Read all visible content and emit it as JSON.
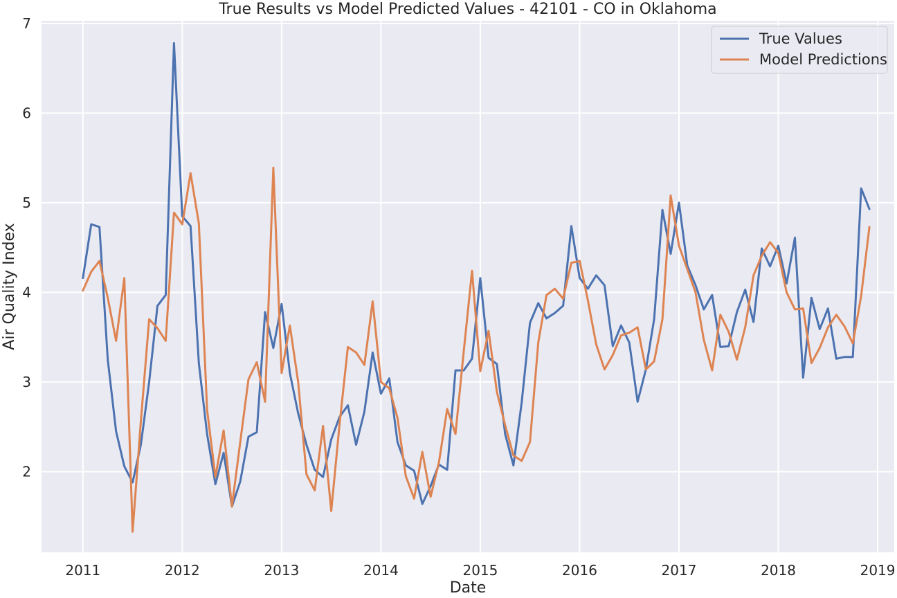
{
  "chart_data": {
    "type": "line",
    "title": "True Results vs Model Predicted Values - 42101 - CO in Oklahoma",
    "xlabel": "Date",
    "ylabel": "Air Quality Index",
    "x_start": "2011-01",
    "x_frequency": "monthly",
    "x_ticks": [
      "2011",
      "2012",
      "2013",
      "2014",
      "2015",
      "2016",
      "2017",
      "2018",
      "2019"
    ],
    "y_ticks": [
      2,
      3,
      4,
      5,
      6,
      7
    ],
    "xlim": [
      "2010-08",
      "2019-03"
    ],
    "ylim": [
      1.1,
      7.03
    ],
    "grid": true,
    "legend_position": "top-right",
    "series": [
      {
        "name": "True Values",
        "color": "#4c72b0",
        "values": [
          4.16,
          4.76,
          4.73,
          3.25,
          2.45,
          2.06,
          1.88,
          2.3,
          3.0,
          3.85,
          3.97,
          6.78,
          4.85,
          4.74,
          3.21,
          2.42,
          1.86,
          2.21,
          1.61,
          1.89,
          2.39,
          2.44,
          3.78,
          3.38,
          3.87,
          3.1,
          2.65,
          2.3,
          2.02,
          1.94,
          2.36,
          2.61,
          2.74,
          2.3,
          2.67,
          3.33,
          2.87,
          3.04,
          2.33,
          2.07,
          2.01,
          1.64,
          1.84,
          2.08,
          2.02,
          3.13,
          3.13,
          3.26,
          4.16,
          3.27,
          3.2,
          2.42,
          2.07,
          2.77,
          3.66,
          3.88,
          3.71,
          3.77,
          3.85,
          4.74,
          4.16,
          4.04,
          4.19,
          4.08,
          3.4,
          3.63,
          3.44,
          2.78,
          3.14,
          3.7,
          4.92,
          4.43,
          5.0,
          4.3,
          4.08,
          3.81,
          3.97,
          3.39,
          3.4,
          3.78,
          4.03,
          3.67,
          4.49,
          4.29,
          4.52,
          4.1,
          4.61,
          3.05,
          3.94,
          3.59,
          3.82,
          3.26,
          3.28,
          3.28,
          5.16,
          4.93
        ]
      },
      {
        "name": "Model Predictions",
        "color": "#dd8452",
        "values": [
          4.02,
          4.23,
          4.35,
          3.94,
          3.46,
          4.16,
          1.33,
          2.56,
          3.7,
          3.6,
          3.46,
          4.89,
          4.76,
          5.33,
          4.77,
          2.69,
          1.94,
          2.46,
          1.61,
          2.33,
          3.03,
          3.22,
          2.78,
          5.39,
          3.1,
          3.63,
          3.0,
          1.97,
          1.79,
          2.51,
          1.56,
          2.53,
          3.39,
          3.33,
          3.19,
          3.9,
          3.0,
          2.93,
          2.6,
          1.95,
          1.7,
          2.22,
          1.72,
          2.1,
          2.7,
          2.42,
          3.34,
          4.24,
          3.12,
          3.57,
          2.89,
          2.52,
          2.18,
          2.12,
          2.33,
          3.44,
          3.97,
          4.04,
          3.93,
          4.33,
          4.35,
          3.91,
          3.42,
          3.14,
          3.3,
          3.52,
          3.55,
          3.61,
          3.14,
          3.23,
          3.7,
          5.08,
          4.52,
          4.26,
          4.0,
          3.47,
          3.13,
          3.75,
          3.56,
          3.25,
          3.61,
          4.19,
          4.41,
          4.56,
          4.44,
          4.0,
          3.81,
          3.82,
          3.21,
          3.38,
          3.61,
          3.75,
          3.62,
          3.43,
          3.96,
          4.73
        ]
      }
    ]
  }
}
